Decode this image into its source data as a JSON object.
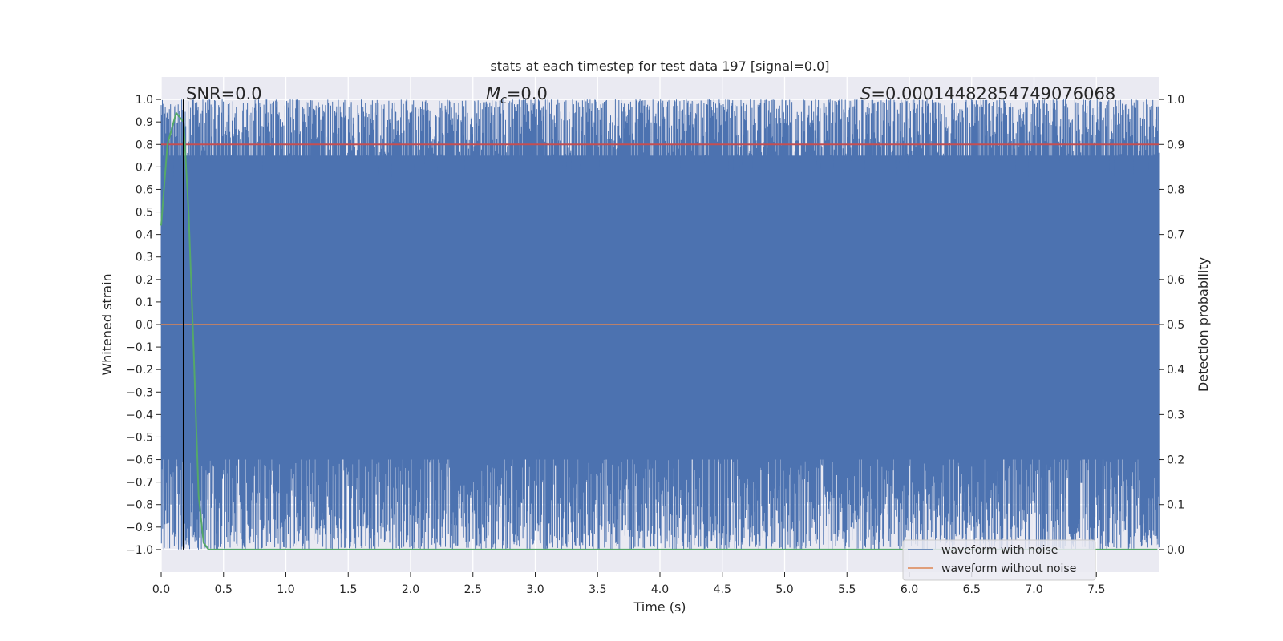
{
  "chart_data": {
    "type": "line",
    "title": "stats at each timestep for test data 197 [signal=0.0]",
    "xlabel": "Time (s)",
    "ylabel_left": "Whitened strain",
    "ylabel_right": "Detection probability",
    "xlim": [
      0.0,
      8.0
    ],
    "ylim_left": [
      -1.1,
      1.1
    ],
    "ylim_right": [
      -0.05,
      1.05
    ],
    "x_ticks": [
      "0.0",
      "0.5",
      "1.0",
      "1.5",
      "2.0",
      "2.5",
      "3.0",
      "3.5",
      "4.0",
      "4.5",
      "5.0",
      "5.5",
      "6.0",
      "6.5",
      "7.0",
      "7.5"
    ],
    "y_ticks_left": [
      "1.0",
      "0.9",
      "0.8",
      "0.7",
      "0.6",
      "0.5",
      "0.4",
      "0.3",
      "0.2",
      "0.1",
      "0.0",
      "−0.1",
      "−0.2",
      "−0.3",
      "−0.4",
      "−0.5",
      "−0.6",
      "−0.7",
      "−0.8",
      "−0.9",
      "−1.0"
    ],
    "y_ticks_right": [
      "1.0",
      "0.9",
      "0.8",
      "0.7",
      "0.6",
      "0.5",
      "0.4",
      "0.3",
      "0.2",
      "0.1",
      "0.0"
    ],
    "grid": true,
    "legend_position": "lower-right",
    "annotations": {
      "snr": "SNR=0.0",
      "mc_symbol": "M",
      "mc_sub": "c",
      "mc_value": "=0.0",
      "s_symbol": "S",
      "s_value": "=0.00014482854749076068"
    },
    "series": [
      {
        "name": "waveform with noise",
        "color": "#4c72b0",
        "description_values": "dense noise spanning approximately -1.0 to 1.0"
      },
      {
        "name": "waveform without noise",
        "color": "#dd8452",
        "y_constant": 0.0
      }
    ],
    "detection_probability": {
      "color": "#55a868",
      "x": [
        0.0,
        0.05,
        0.12,
        0.18,
        0.22,
        0.26,
        0.3,
        0.34,
        0.38,
        0.5,
        1.0,
        2.0,
        3.0,
        4.0,
        5.0,
        6.0,
        7.0,
        7.99
      ],
      "y": [
        0.72,
        0.9,
        0.97,
        0.95,
        0.75,
        0.45,
        0.12,
        0.015,
        0.0,
        0.0,
        0.0,
        0.0,
        0.0,
        0.0,
        0.0,
        0.0,
        0.0,
        0.0
      ]
    },
    "threshold": {
      "color": "#c44e52",
      "y_right": 0.9
    },
    "marker_line": {
      "color": "#000000",
      "x": 0.18
    }
  }
}
